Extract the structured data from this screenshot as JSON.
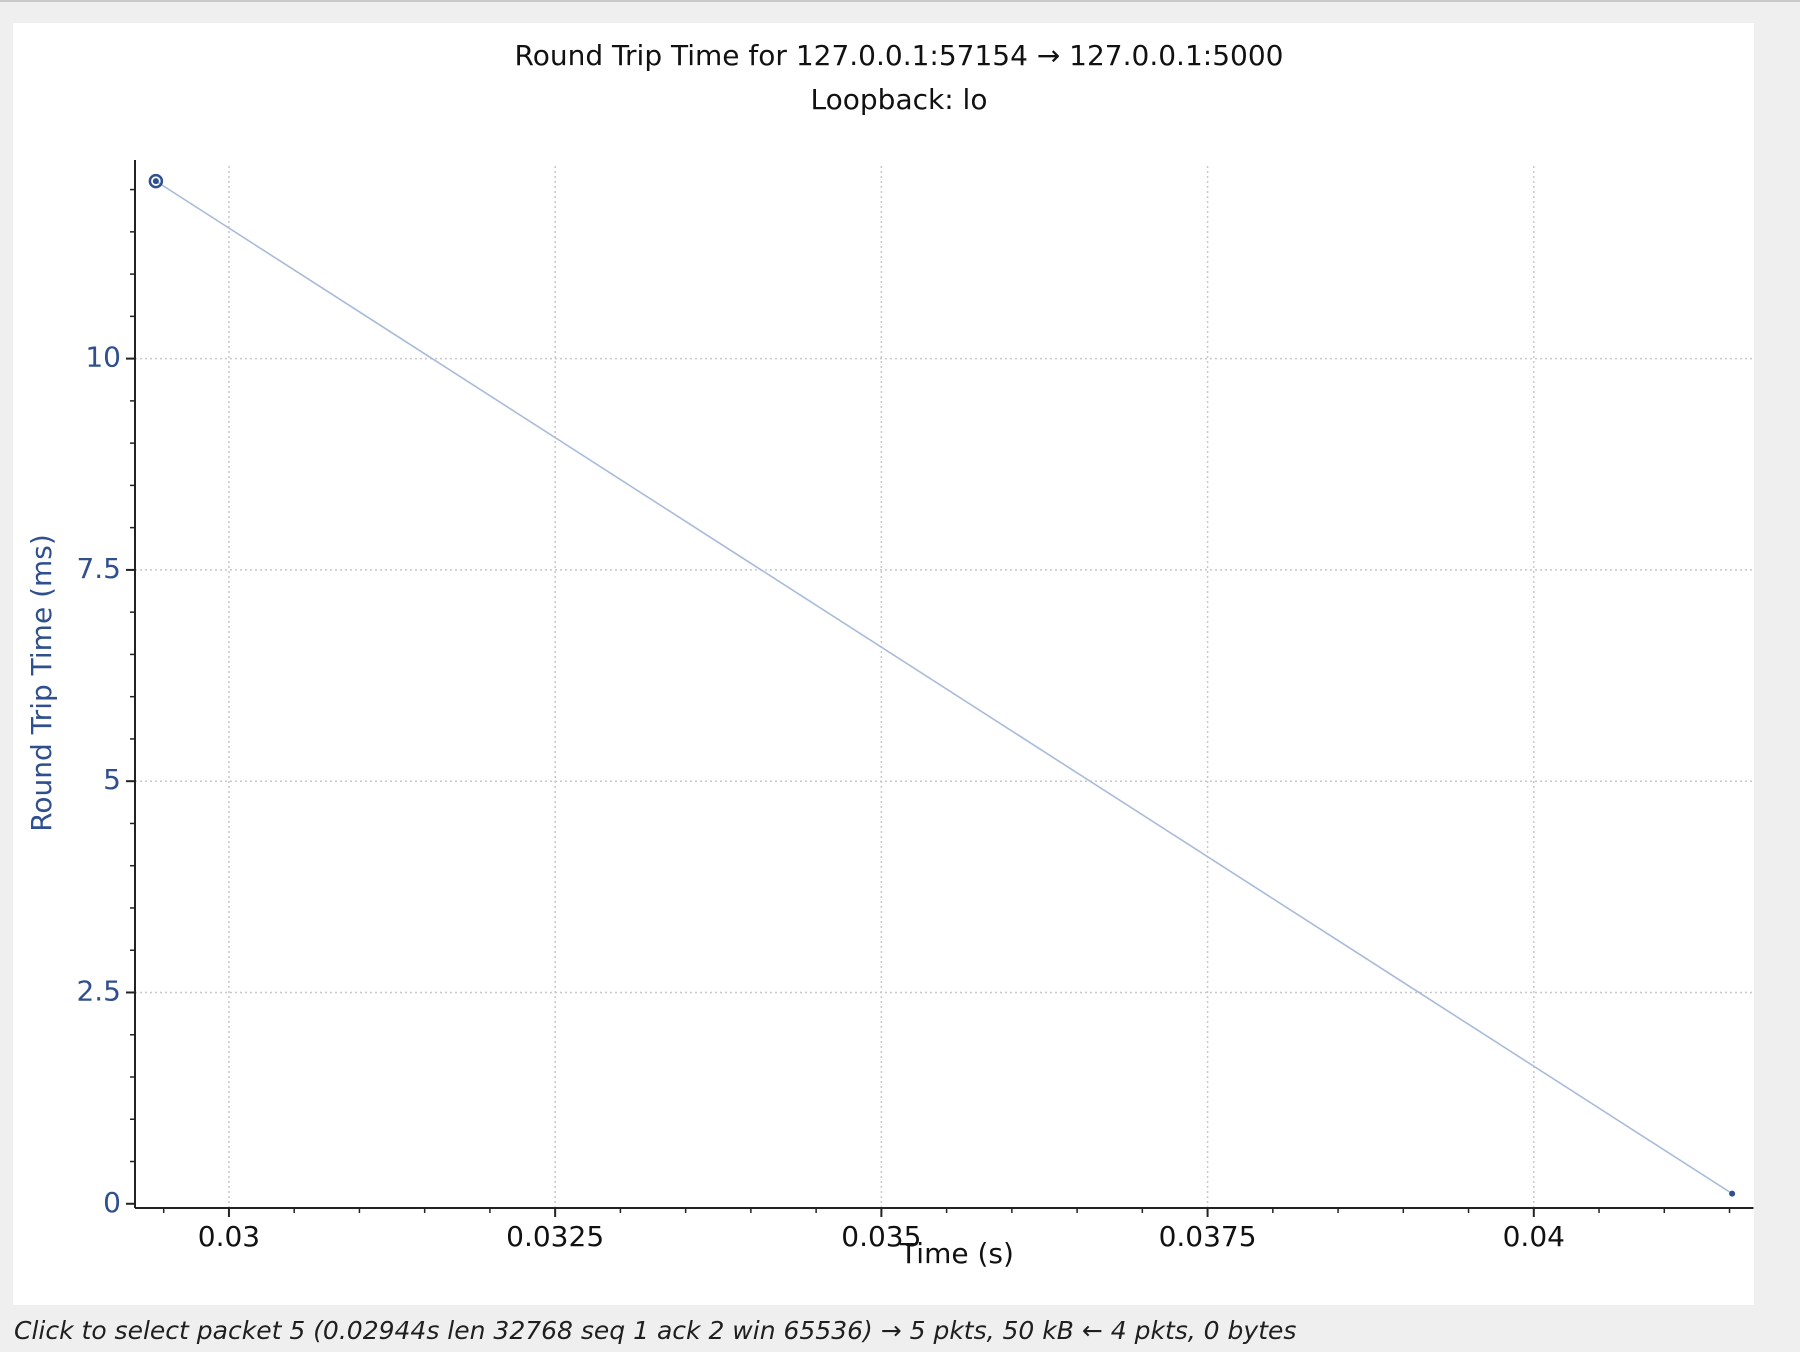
{
  "window": {
    "status_hint": "Click to select packet 5 (0.02944s len 32768 seq 1 ack 2 win 65536) → 5 pkts, 50 kB ← 4 pkts, 0 bytes"
  },
  "chart_data": {
    "type": "line",
    "title": "Round Trip Time for 127.0.0.1:57154 → 127.0.0.1:5000",
    "subtitle": "Loopback: lo",
    "xlabel": "Time (s)",
    "ylabel": "Round Trip Time (ms)",
    "xlim": [
      0.02928,
      0.04168
    ],
    "ylim": [
      -0.05,
      12.35
    ],
    "x_ticks": [
      {
        "value": 0.03,
        "label": "0.03"
      },
      {
        "value": 0.0325,
        "label": "0.0325"
      },
      {
        "value": 0.035,
        "label": "0.035"
      },
      {
        "value": 0.0375,
        "label": "0.0375"
      },
      {
        "value": 0.04,
        "label": "0.04"
      }
    ],
    "y_ticks": [
      {
        "value": 0,
        "label": "0"
      },
      {
        "value": 2.5,
        "label": "2.5"
      },
      {
        "value": 5,
        "label": "5"
      },
      {
        "value": 7.5,
        "label": "7.5"
      },
      {
        "value": 10,
        "label": "10"
      }
    ],
    "x_minor_step": 0.0005,
    "y_minor_step": 0.5,
    "grid": true,
    "series": [
      {
        "color": "#2f4f8f",
        "line_color": "#a9bbd8",
        "points": [
          {
            "x": 0.02944,
            "y": 12.1,
            "selected": true
          },
          {
            "x": 0.04152,
            "y": 0.12,
            "selected": false
          }
        ]
      }
    ],
    "colors": {
      "axis_text": "#2f4f8f",
      "tick_text": "#111111",
      "grid": "#c8c8c8"
    }
  }
}
